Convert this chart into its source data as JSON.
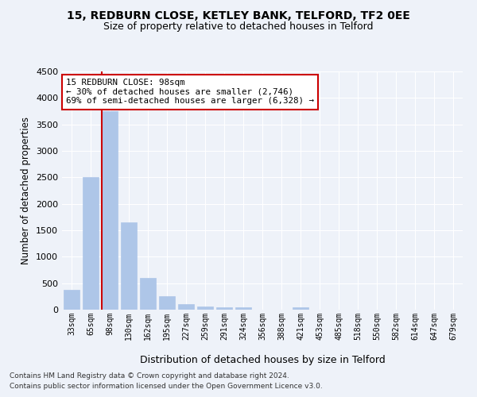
{
  "title_line1": "15, REDBURN CLOSE, KETLEY BANK, TELFORD, TF2 0EE",
  "title_line2": "Size of property relative to detached houses in Telford",
  "xlabel": "Distribution of detached houses by size in Telford",
  "ylabel": "Number of detached properties",
  "categories": [
    "33sqm",
    "65sqm",
    "98sqm",
    "130sqm",
    "162sqm",
    "195sqm",
    "227sqm",
    "259sqm",
    "291sqm",
    "324sqm",
    "356sqm",
    "388sqm",
    "421sqm",
    "453sqm",
    "485sqm",
    "518sqm",
    "550sqm",
    "582sqm",
    "614sqm",
    "647sqm",
    "679sqm"
  ],
  "values": [
    375,
    2500,
    3750,
    1650,
    600,
    250,
    100,
    60,
    50,
    50,
    0,
    0,
    50,
    0,
    0,
    0,
    0,
    0,
    0,
    0,
    0
  ],
  "bar_color": "#aec6e8",
  "highlight_bar_index": 2,
  "highlight_line_color": "#cc0000",
  "annotation_line1": "15 REDBURN CLOSE: 98sqm",
  "annotation_line2": "← 30% of detached houses are smaller (2,746)",
  "annotation_line3": "69% of semi-detached houses are larger (6,328) →",
  "annotation_box_color": "#cc0000",
  "ylim": [
    0,
    4500
  ],
  "yticks": [
    0,
    500,
    1000,
    1500,
    2000,
    2500,
    3000,
    3500,
    4000,
    4500
  ],
  "footer_line1": "Contains HM Land Registry data © Crown copyright and database right 2024.",
  "footer_line2": "Contains public sector information licensed under the Open Government Licence v3.0.",
  "background_color": "#eef2f9",
  "grid_color": "#ffffff"
}
